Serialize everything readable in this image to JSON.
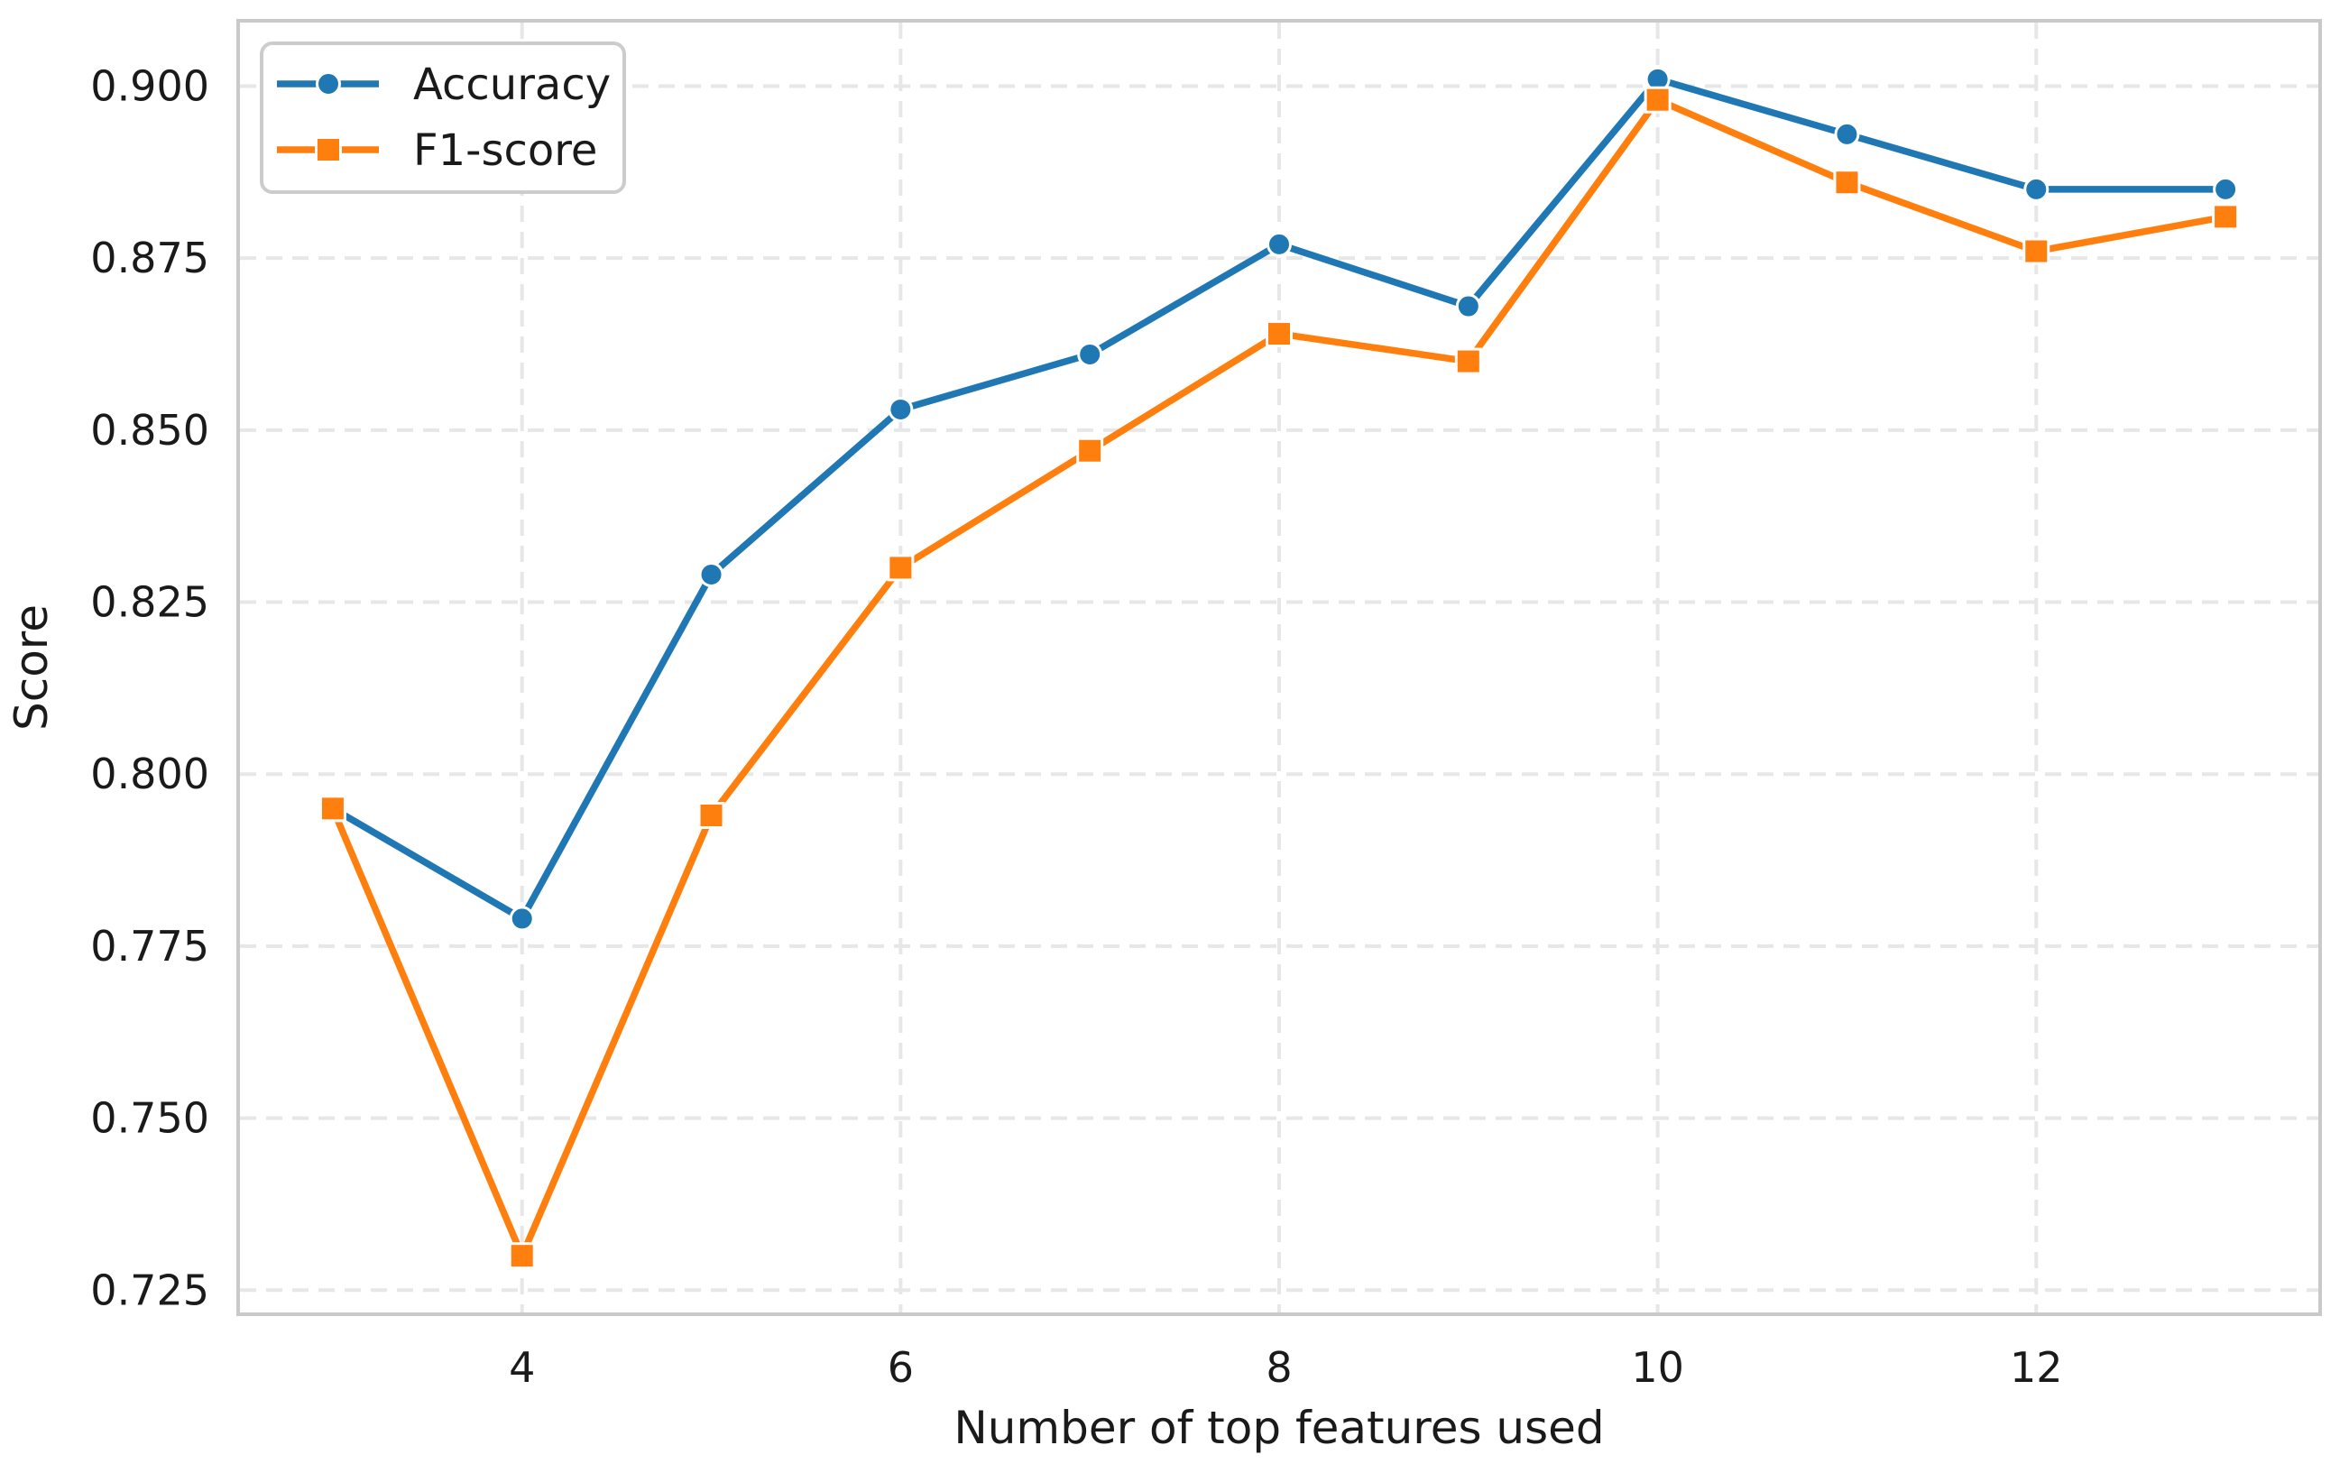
{
  "figure": {
    "background": "#ffffff",
    "plot_background": "#ffffff"
  },
  "chart_data": {
    "type": "line",
    "title": "",
    "xlabel": "Number of top features used",
    "ylabel": "Score",
    "x": [
      3,
      4,
      5,
      6,
      7,
      8,
      9,
      10,
      11,
      12,
      13
    ],
    "series": [
      {
        "name": "Accuracy",
        "marker": "circle",
        "color": "#1f77b4",
        "values": [
          0.795,
          0.779,
          0.829,
          0.853,
          0.861,
          0.877,
          0.868,
          0.901,
          0.893,
          0.885,
          0.885
        ]
      },
      {
        "name": "F1-score",
        "marker": "square",
        "color": "#ff7f0e",
        "values": [
          0.795,
          0.73,
          0.794,
          0.83,
          0.847,
          0.864,
          0.86,
          0.898,
          0.886,
          0.876,
          0.881
        ]
      }
    ],
    "xlim": [
      2.5,
      13.5
    ],
    "ylim": [
      0.7215,
      0.9095
    ],
    "x_ticks": [
      4,
      6,
      8,
      10,
      12
    ],
    "y_ticks": [
      0.725,
      0.75,
      0.775,
      0.8,
      0.825,
      0.85,
      0.875,
      0.9
    ],
    "y_tick_decimals": 3,
    "grid": {
      "visible": true,
      "style": "dashed",
      "color": "#e7e7e7"
    },
    "legend": {
      "position": "upper left",
      "entries": [
        "Accuracy",
        "F1-score"
      ]
    },
    "colors": {
      "spine": "#c9c9c9",
      "grid": "#e7e7e7",
      "text": "#1a1a1a",
      "legend_border": "#cccccc",
      "marker_edge": "#ffffff"
    }
  }
}
